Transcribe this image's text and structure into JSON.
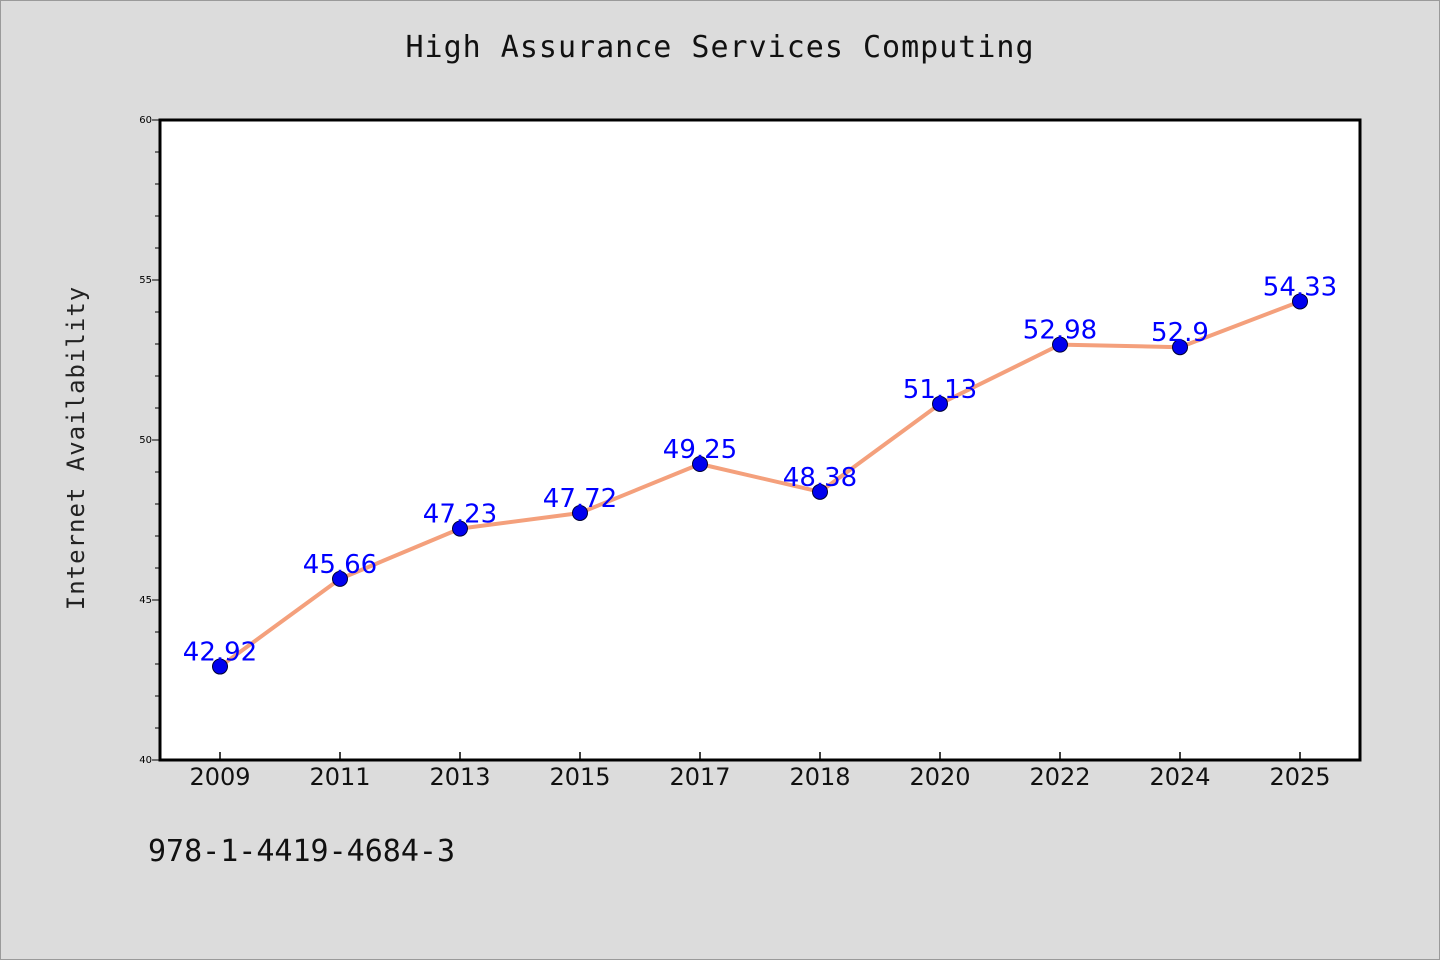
{
  "chart_data": {
    "type": "line",
    "title": "High Assurance Services Computing",
    "xlabel": "",
    "ylabel": "Internet Availability",
    "categories": [
      "2009",
      "2011",
      "2013",
      "2015",
      "2017",
      "2018",
      "2020",
      "2022",
      "2024",
      "2025"
    ],
    "series": [
      {
        "values": [
          42.92,
          45.66,
          47.23,
          47.72,
          49.25,
          48.38,
          51.13,
          52.98,
          52.9,
          54.33
        ],
        "labels": [
          "42.92",
          "45.66",
          "47.23",
          "47.72",
          "49.25",
          "48.38",
          "51.13",
          "52.98",
          "52.9",
          "54.33"
        ]
      }
    ],
    "ylim": [
      40,
      60
    ],
    "yticks": [
      "40",
      "45",
      "50",
      "55",
      "60"
    ],
    "grid": false,
    "legend": "none",
    "colors": {
      "line": "#f4a07c",
      "marker": "#0000ee",
      "labels": "#0000ff"
    }
  },
  "footer": {
    "isbn": "978-1-4419-4684-3"
  }
}
